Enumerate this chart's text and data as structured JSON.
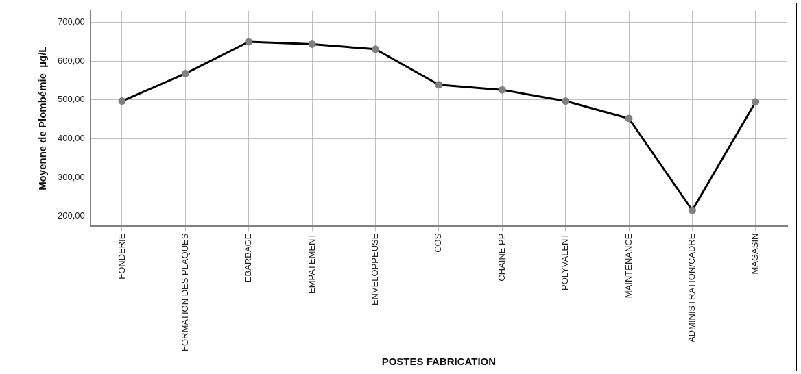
{
  "chart_data": {
    "type": "line",
    "xlabel": "POSTES FABRICATION",
    "ylabel": "Moyenne de Plombémie  µg/L",
    "categories": [
      "FONDERIE",
      "FORMATION DES PLAQUES",
      "EBARBAGE",
      "EMPATEMENT",
      "ENVELOPPEUSE",
      "COS",
      "CHAINE PP",
      "POLYVALENT",
      "MAINTENANCE",
      "ADMINISTRATION/CADRE",
      "MAGASIN"
    ],
    "series": [
      {
        "color": "#000000",
        "values": [
          497,
          568,
          650,
          644,
          631,
          539,
          526,
          497,
          452,
          215,
          495
        ]
      }
    ],
    "ylim": [
      175,
      730
    ],
    "yticks": [
      {
        "value": 200,
        "label": "200,00"
      },
      {
        "value": 300,
        "label": "300,00"
      },
      {
        "value": 400,
        "label": "400,00"
      },
      {
        "value": 500,
        "label": "500,00"
      },
      {
        "value": 600,
        "label": "600,00"
      },
      {
        "value": 700,
        "label": "700,00"
      }
    ],
    "grid": true,
    "marker": "circle",
    "line_style": "solid",
    "legend": false
  }
}
